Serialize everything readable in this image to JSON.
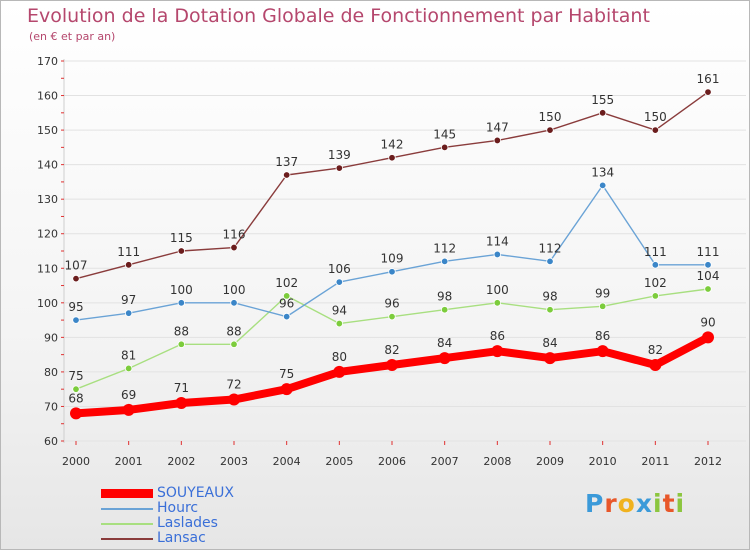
{
  "title": "Evolution de la Dotation Globale de Fonctionnement par Habitant",
  "subtitle": "(en € et par an)",
  "logo": {
    "text": "Proxiti",
    "letters": [
      {
        "ch": "P",
        "color": "#3b9ad9"
      },
      {
        "ch": "r",
        "color": "#e8572a"
      },
      {
        "ch": "o",
        "color": "#f0b21e"
      },
      {
        "ch": "x",
        "color": "#3b9ad9"
      },
      {
        "ch": "i",
        "color": "#8cc63f"
      },
      {
        "ch": "t",
        "color": "#e8572a"
      },
      {
        "ch": "i",
        "color": "#8cc63f"
      }
    ]
  },
  "colors": {
    "axis_text": "#333333",
    "grid": "#e2e2e2",
    "tick_red": "#e03030",
    "legend_text": "#3a6fd8"
  },
  "chart_data": {
    "type": "line",
    "x": [
      2000,
      2001,
      2002,
      2003,
      2004,
      2005,
      2006,
      2007,
      2008,
      2009,
      2010,
      2011,
      2012
    ],
    "ylim": [
      60,
      170
    ],
    "yticks": [
      60,
      70,
      80,
      90,
      100,
      110,
      120,
      130,
      140,
      150,
      160,
      170
    ],
    "grid": true,
    "legend_position": "bottom-left",
    "series": [
      {
        "name": "SOUYEAUX",
        "color": "#ff0000",
        "marker_color": "#ff0000",
        "thick": true,
        "values": [
          68,
          69,
          71,
          72,
          75,
          80,
          82,
          84,
          86,
          84,
          86,
          82,
          90
        ]
      },
      {
        "name": "Hourc",
        "color": "#6aa3d6",
        "marker_color": "#3b86c8",
        "thick": false,
        "values": [
          95,
          97,
          100,
          100,
          96,
          106,
          109,
          112,
          114,
          112,
          134,
          111,
          111
        ]
      },
      {
        "name": "Laslades",
        "color": "#a8df80",
        "marker_color": "#7ccc3c",
        "thick": false,
        "values": [
          75,
          81,
          88,
          88,
          102,
          94,
          96,
          98,
          100,
          98,
          99,
          102,
          104
        ]
      },
      {
        "name": "Lansac",
        "color": "#8a3c3c",
        "marker_color": "#6b1d1d",
        "thick": false,
        "values": [
          107,
          111,
          115,
          116,
          137,
          139,
          142,
          145,
          147,
          150,
          155,
          150,
          161
        ]
      }
    ]
  }
}
